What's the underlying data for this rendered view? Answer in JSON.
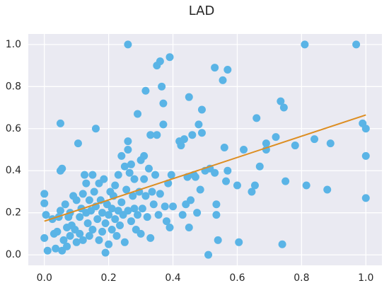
{
  "chart_data": {
    "type": "scatter",
    "title": "LAD",
    "xlim": [
      -0.05,
      1.05
    ],
    "ylim": [
      -0.05,
      1.05
    ],
    "xticks": [
      {
        "value": 0,
        "label": "0.0"
      },
      0.2,
      0.4,
      0.6,
      0.8,
      {
        "value": 1,
        "label": "1.0"
      }
    ],
    "yticks": [
      {
        "value": 0,
        "label": "0.0"
      },
      0.2,
      0.4,
      0.6,
      0.8,
      {
        "value": 1,
        "label": "1.0"
      }
    ],
    "grid": true,
    "series": [
      {
        "type": "scatter",
        "color": "#5ab4e6",
        "x": [
          0.0,
          0.0,
          0.005,
          0.0,
          0.01,
          0.025,
          0.03,
          0.035,
          0.04,
          0.045,
          0.05,
          0.055,
          0.05,
          0.05,
          0.055,
          0.06,
          0.065,
          0.07,
          0.07,
          0.075,
          0.08,
          0.08,
          0.085,
          0.09,
          0.095,
          0.1,
          0.1,
          0.105,
          0.11,
          0.11,
          0.115,
          0.12,
          0.12,
          0.125,
          0.13,
          0.13,
          0.135,
          0.14,
          0.14,
          0.145,
          0.15,
          0.15,
          0.155,
          0.16,
          0.16,
          0.165,
          0.17,
          0.17,
          0.175,
          0.18,
          0.18,
          0.185,
          0.19,
          0.19,
          0.195,
          0.2,
          0.2,
          0.205,
          0.21,
          0.21,
          0.215,
          0.22,
          0.22,
          0.225,
          0.23,
          0.23,
          0.235,
          0.24,
          0.24,
          0.245,
          0.25,
          0.25,
          0.255,
          0.26,
          0.26,
          0.26,
          0.26,
          0.265,
          0.27,
          0.27,
          0.275,
          0.28,
          0.28,
          0.285,
          0.29,
          0.29,
          0.295,
          0.3,
          0.3,
          0.305,
          0.31,
          0.31,
          0.315,
          0.315,
          0.32,
          0.325,
          0.33,
          0.33,
          0.335,
          0.34,
          0.345,
          0.35,
          0.35,
          0.355,
          0.36,
          0.36,
          0.365,
          0.37,
          0.37,
          0.375,
          0.38,
          0.385,
          0.39,
          0.39,
          0.395,
          0.4,
          0.42,
          0.425,
          0.43,
          0.435,
          0.44,
          0.445,
          0.45,
          0.45,
          0.455,
          0.46,
          0.465,
          0.47,
          0.475,
          0.48,
          0.485,
          0.49,
          0.49,
          0.5,
          0.51,
          0.515,
          0.53,
          0.53,
          0.535,
          0.535,
          0.54,
          0.555,
          0.56,
          0.565,
          0.57,
          0.57,
          0.6,
          0.605,
          0.62,
          0.645,
          0.655,
          0.66,
          0.67,
          0.69,
          0.69,
          0.72,
          0.735,
          0.74,
          0.745,
          0.75,
          0.78,
          0.81,
          0.815,
          0.84,
          0.88,
          0.89,
          0.97,
          0.99,
          1.0,
          1.0,
          1.0
        ],
        "values": [
          0.29,
          0.245,
          0.19,
          0.08,
          0.02,
          0.17,
          0.1,
          0.03,
          0.11,
          0.18,
          0.4,
          0.41,
          0.625,
          0.21,
          0.02,
          0.07,
          0.24,
          0.13,
          0.04,
          0.18,
          0.2,
          0.09,
          0.14,
          0.28,
          0.12,
          0.26,
          0.06,
          0.53,
          0.18,
          0.1,
          0.22,
          0.29,
          0.07,
          0.38,
          0.34,
          0.2,
          0.15,
          0.09,
          0.26,
          0.21,
          0.38,
          0.12,
          0.3,
          0.6,
          0.23,
          0.17,
          0.07,
          0.34,
          0.26,
          0.11,
          0.2,
          0.36,
          0.15,
          0.01,
          0.24,
          0.05,
          0.19,
          0.3,
          0.12,
          0.22,
          0.28,
          0.17,
          0.33,
          0.09,
          0.21,
          0.38,
          0.14,
          0.25,
          0.47,
          0.19,
          0.42,
          0.06,
          0.31,
          1.0,
          0.54,
          0.5,
          0.21,
          0.39,
          0.16,
          0.43,
          0.28,
          0.22,
          0.36,
          0.12,
          0.67,
          0.19,
          0.3,
          0.45,
          0.1,
          0.22,
          0.47,
          0.36,
          0.78,
          0.28,
          0.18,
          0.41,
          0.57,
          0.08,
          0.3,
          0.24,
          0.38,
          0.9,
          0.57,
          0.19,
          0.92,
          0.29,
          0.8,
          0.62,
          0.72,
          0.23,
          0.16,
          0.34,
          0.94,
          0.13,
          0.38,
          0.23,
          0.54,
          0.52,
          0.19,
          0.55,
          0.24,
          0.37,
          0.75,
          0.13,
          0.26,
          0.57,
          0.38,
          0.37,
          0.2,
          0.62,
          0.31,
          0.69,
          0.58,
          0.4,
          0.0,
          0.41,
          0.89,
          0.39,
          0.24,
          0.19,
          0.07,
          0.83,
          0.51,
          0.35,
          0.88,
          0.4,
          0.33,
          0.06,
          0.5,
          0.3,
          0.33,
          0.65,
          0.42,
          0.5,
          0.53,
          0.56,
          0.73,
          0.05,
          0.7,
          0.35,
          0.52,
          1.0,
          0.33,
          0.55,
          0.31,
          0.53,
          1.0,
          0.625,
          0.6,
          0.47,
          0.27
        ]
      },
      {
        "type": "line",
        "color": "#dd8e22",
        "x": [
          0,
          1
        ],
        "values": [
          0.16,
          0.665
        ]
      }
    ]
  }
}
